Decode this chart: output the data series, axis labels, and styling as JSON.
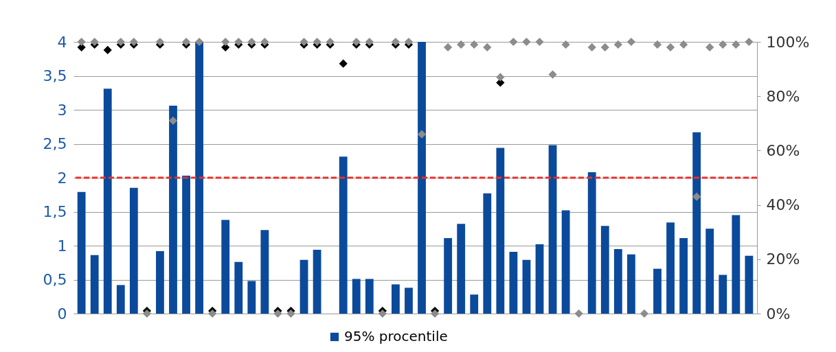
{
  "chart_data": {
    "type": "bar",
    "categories": [
      null,
      null,
      null,
      null,
      null,
      null,
      null,
      null,
      null,
      null,
      null,
      null,
      null,
      null,
      null,
      null,
      null,
      null,
      null,
      null,
      null,
      null,
      null,
      null,
      null,
      null,
      null,
      null,
      null,
      null,
      null,
      null,
      null,
      null,
      null,
      null,
      null,
      null,
      null,
      null,
      null,
      null,
      null,
      null,
      null,
      null,
      null,
      null,
      null,
      null,
      null,
      null
    ],
    "series": [
      {
        "name": "95% procentile",
        "color": "#0b4a9b",
        "values": [
          1.79,
          0.86,
          3.31,
          0.42,
          1.85,
          0,
          0.92,
          3.06,
          2.03,
          4,
          0,
          1.38,
          0.76,
          0.48,
          1.23,
          0,
          0,
          0.79,
          0.94,
          0,
          2.31,
          0.51,
          0.51,
          0,
          0.43,
          0.38,
          4,
          0,
          1.11,
          1.32,
          0.28,
          1.77,
          2.44,
          0.91,
          0.79,
          1.02,
          2.48,
          1.52,
          0,
          2.08,
          1.29,
          0.95,
          0.87,
          0,
          0.66,
          1.34,
          1.11,
          2.67,
          1.25,
          0.57,
          1.45,
          0.85
        ]
      },
      {
        "type": "scatter",
        "axis": "y2",
        "color": "#000000",
        "values": [
          98,
          99,
          97,
          99,
          99,
          1,
          99,
          null,
          99,
          null,
          1,
          98,
          99,
          99,
          99,
          1,
          1,
          99,
          99,
          99,
          92,
          99,
          99,
          1,
          99,
          99,
          null,
          1,
          null,
          null,
          null,
          null,
          85,
          null,
          null,
          null,
          null,
          null,
          null,
          null,
          null,
          null,
          null,
          null,
          null,
          null,
          null,
          null,
          null,
          null,
          null,
          null
        ]
      },
      {
        "type": "scatter",
        "axis": "y2",
        "color": "#8c8c8c",
        "values": [
          100,
          100,
          null,
          100,
          100,
          0,
          100,
          71,
          100,
          100,
          0,
          100,
          100,
          100,
          100,
          0,
          0,
          100,
          100,
          100,
          null,
          100,
          100,
          0,
          100,
          100,
          66,
          0,
          98,
          99,
          99,
          98,
          87,
          100,
          100,
          100,
          88,
          99,
          0,
          98,
          98,
          99,
          100,
          0,
          99,
          98,
          99,
          43,
          98,
          99,
          99,
          100
        ]
      }
    ],
    "marker": "diamond",
    "ylim": [
      0,
      4
    ],
    "yticks": [
      0,
      {
        "value": 0.5,
        "label": "0,5"
      },
      1,
      {
        "value": 1.5,
        "label": "1,5"
      },
      2,
      {
        "value": 2.5,
        "label": "2,5"
      },
      3,
      {
        "value": 3.5,
        "label": "3,5"
      },
      4
    ],
    "y2lim": [
      0,
      100
    ],
    "y2ticks": [
      {
        "value": 0,
        "label": "0%"
      },
      {
        "value": 20,
        "label": "20%"
      },
      {
        "value": 40,
        "label": "40%"
      },
      {
        "value": 60,
        "label": "60%"
      },
      {
        "value": 80,
        "label": "80%"
      },
      {
        "value": 100,
        "label": "100%"
      }
    ],
    "grid": "y",
    "legend": "bottom",
    "ref_lines": [
      {
        "axis": "y",
        "value": 2,
        "color": "#e8302a",
        "line_style": "dashed"
      }
    ]
  }
}
